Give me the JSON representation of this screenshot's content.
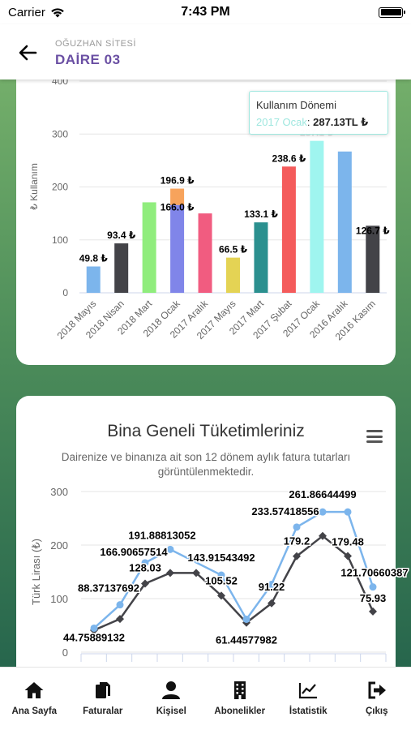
{
  "status_bar": {
    "carrier": "Carrier",
    "time": "7:43 PM"
  },
  "header": {
    "subtitle": "OĞUZHAN SİTESİ",
    "title": "DAİRE 03"
  },
  "chart1_tooltip": {
    "heading": "Kullanım Dönemi",
    "series": "2017 Ocak",
    "value": "287.13TL ₺"
  },
  "chart2_header": {
    "title": "Bina Geneli Tüketimleriniz",
    "subtitle": "Dairenize ve binanıza ait son 12 dönem aylık fatura tutarları görüntülenmektedir."
  },
  "tabs": [
    {
      "label": "Ana Sayfa",
      "icon": "home-icon"
    },
    {
      "label": "Faturalar",
      "icon": "documents-icon"
    },
    {
      "label": "Kişisel",
      "icon": "user-icon"
    },
    {
      "label": "Abonelikler",
      "icon": "building-icon"
    },
    {
      "label": "İstatistik",
      "icon": "chart-icon"
    },
    {
      "label": "Çıkış",
      "icon": "logout-icon"
    }
  ],
  "chart_data": [
    {
      "type": "bar",
      "ylabel": "₺ Kullanım",
      "ylim": [
        0,
        400
      ],
      "yticks": [
        0,
        100,
        200,
        300,
        400
      ],
      "grid": true,
      "categories": [
        "2018 Mayıs",
        "2018 Nisan",
        "2018 Mart",
        "2018 Ocak",
        "2017 Aralık",
        "2017 Mayıs",
        "2017 Mart",
        "2017 Şubat",
        "2017 Ocak",
        "2016 Aralık",
        "2016 Kasım"
      ],
      "values": [
        49.8,
        93.4,
        171,
        196.9,
        150,
        66.5,
        133.1,
        238.6,
        287.13,
        267,
        126.7
      ],
      "stacked_part": {
        "index": 3,
        "lower_value": 166.0,
        "lower_label": "166.0 ₺"
      },
      "labels": [
        "49.8 ₺",
        "93.4 ₺",
        "",
        "196.9 ₺",
        "",
        "66.5 ₺",
        "133.1 ₺",
        "238.6 ₺",
        "287.1 ₺",
        "",
        "126.7 ₺"
      ],
      "colors": [
        "#7cb5ec",
        "#434348",
        "#90ed7d",
        "#8085e9",
        "#f15c80",
        "#e4d354",
        "#2b908f",
        "#f45b5b",
        "#9ff5ef",
        "#7cb5ec",
        "#434348"
      ],
      "stack_top_color": "#f7a35c"
    },
    {
      "type": "line",
      "ylabel": "Türk Lirası (₺)",
      "ylim": [
        0,
        300
      ],
      "yticks": [
        0,
        100,
        200,
        300
      ],
      "grid": true,
      "series": [
        {
          "color": "#7cb5ec",
          "values": [
            44.75889132,
            88.37137692,
            166.90657514,
            191.88813052,
            143.91543492,
            61.44577982,
            126.5,
            233.57418556,
            261.86644499,
            261.86644499,
            121.70660387
          ],
          "labels": [
            "44.75889132",
            "88.37137692",
            "166.90657514",
            "191.88813052",
            "143.91543492",
            "61.44577982",
            "",
            "233.57418556",
            "261.86644499",
            "",
            "121.70660387"
          ]
        },
        {
          "color": "#434348",
          "values": [
            41,
            62,
            128.03,
            148,
            148,
            105.52,
            55,
            91.22,
            179.2,
            217,
            179.48,
            75.93
          ],
          "labels": [
            "",
            "",
            "128.03",
            "",
            "",
            "105.52",
            "",
            "91.22",
            "179.2",
            "",
            "179.48",
            "75.93"
          ]
        }
      ]
    }
  ]
}
